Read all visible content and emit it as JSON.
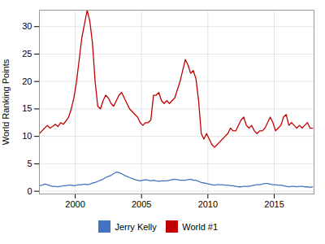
{
  "chart_data": {
    "type": "line",
    "ylabel": "World Ranking Points",
    "xlim": [
      1997.3,
      2018.0
    ],
    "ylim": [
      -0.5,
      33
    ],
    "xticks": [
      2000,
      2005,
      2010,
      2015
    ],
    "yticks": [
      0,
      5,
      10,
      15,
      20,
      25,
      30
    ],
    "grid": true,
    "legend": "bottom",
    "x": [
      1997.3,
      1997.5,
      1997.7,
      1997.9,
      1998.1,
      1998.3,
      1998.5,
      1998.7,
      1998.9,
      1999.1,
      1999.3,
      1999.5,
      1999.7,
      1999.9,
      2000.1,
      2000.3,
      2000.5,
      2000.7,
      2000.9,
      2001.1,
      2001.3,
      2001.5,
      2001.7,
      2001.9,
      2002.1,
      2002.3,
      2002.5,
      2002.7,
      2002.9,
      2003.1,
      2003.3,
      2003.5,
      2003.7,
      2003.9,
      2004.1,
      2004.3,
      2004.5,
      2004.7,
      2004.9,
      2005.1,
      2005.3,
      2005.5,
      2005.7,
      2005.9,
      2006.1,
      2006.3,
      2006.5,
      2006.7,
      2006.9,
      2007.1,
      2007.3,
      2007.5,
      2007.7,
      2007.9,
      2008.1,
      2008.3,
      2008.5,
      2008.7,
      2008.9,
      2009.1,
      2009.3,
      2009.5,
      2009.7,
      2009.9,
      2010.1,
      2010.3,
      2010.5,
      2010.7,
      2010.9,
      2011.1,
      2011.3,
      2011.5,
      2011.7,
      2011.9,
      2012.1,
      2012.3,
      2012.5,
      2012.7,
      2012.9,
      2013.1,
      2013.3,
      2013.5,
      2013.7,
      2013.9,
      2014.1,
      2014.3,
      2014.5,
      2014.7,
      2014.9,
      2015.1,
      2015.3,
      2015.5,
      2015.7,
      2015.9,
      2016.1,
      2016.3,
      2016.5,
      2016.7,
      2016.9,
      2017.1,
      2017.3,
      2017.5,
      2017.7,
      2017.9
    ],
    "series": [
      {
        "name": "Jerry Kelly",
        "color": "#4472c4",
        "values": [
          1.0,
          1.1,
          1.3,
          1.2,
          1.0,
          0.9,
          0.9,
          0.8,
          0.9,
          1.0,
          1.0,
          1.1,
          1.1,
          1.0,
          1.1,
          1.2,
          1.2,
          1.3,
          1.2,
          1.3,
          1.5,
          1.6,
          1.8,
          2.0,
          2.2,
          2.5,
          2.7,
          2.9,
          3.2,
          3.5,
          3.4,
          3.2,
          2.9,
          2.7,
          2.5,
          2.3,
          2.1,
          2.0,
          1.9,
          2.0,
          2.1,
          2.0,
          1.9,
          2.0,
          1.9,
          1.8,
          1.9,
          1.9,
          1.9,
          2.0,
          2.1,
          2.2,
          2.1,
          2.0,
          2.0,
          2.0,
          2.1,
          2.2,
          2.0,
          2.0,
          1.8,
          1.6,
          1.5,
          1.4,
          1.3,
          1.2,
          1.1,
          1.2,
          1.2,
          1.2,
          1.1,
          1.1,
          1.0,
          1.0,
          0.9,
          0.8,
          0.8,
          0.9,
          0.9,
          0.9,
          1.0,
          1.1,
          1.2,
          1.2,
          1.3,
          1.4,
          1.4,
          1.3,
          1.2,
          1.2,
          1.1,
          1.1,
          1.0,
          0.9,
          0.8,
          0.9,
          0.9,
          0.8,
          0.9,
          0.9,
          0.8,
          0.8,
          0.7,
          0.8
        ]
      },
      {
        "name": "World #1",
        "color": "#c00000",
        "values": [
          10.5,
          11.0,
          11.5,
          12.0,
          11.5,
          11.8,
          12.2,
          11.8,
          12.5,
          12.2,
          12.8,
          13.5,
          15.0,
          17.0,
          20.0,
          24.0,
          28.0,
          30.5,
          33.0,
          31.0,
          27.0,
          20.0,
          15.5,
          15.0,
          16.5,
          17.5,
          17.0,
          16.0,
          15.5,
          16.5,
          17.5,
          18.0,
          17.0,
          16.0,
          15.0,
          14.5,
          14.0,
          13.5,
          12.5,
          12.0,
          12.5,
          12.5,
          13.0,
          17.5,
          17.5,
          18.0,
          16.5,
          16.0,
          16.5,
          16.0,
          16.5,
          17.0,
          18.5,
          20.0,
          22.0,
          24.0,
          23.0,
          21.5,
          22.0,
          20.5,
          16.5,
          10.5,
          9.5,
          10.5,
          9.5,
          8.5,
          8.0,
          8.5,
          9.0,
          9.5,
          10.0,
          10.5,
          11.5,
          11.0,
          11.0,
          12.0,
          13.0,
          13.5,
          12.0,
          11.5,
          12.0,
          11.0,
          10.5,
          11.0,
          11.0,
          11.5,
          12.5,
          13.5,
          12.5,
          11.0,
          11.5,
          12.0,
          13.5,
          14.0,
          12.0,
          12.5,
          12.0,
          11.5,
          12.0,
          11.5,
          12.0,
          12.5,
          11.5,
          11.5
        ]
      }
    ]
  }
}
